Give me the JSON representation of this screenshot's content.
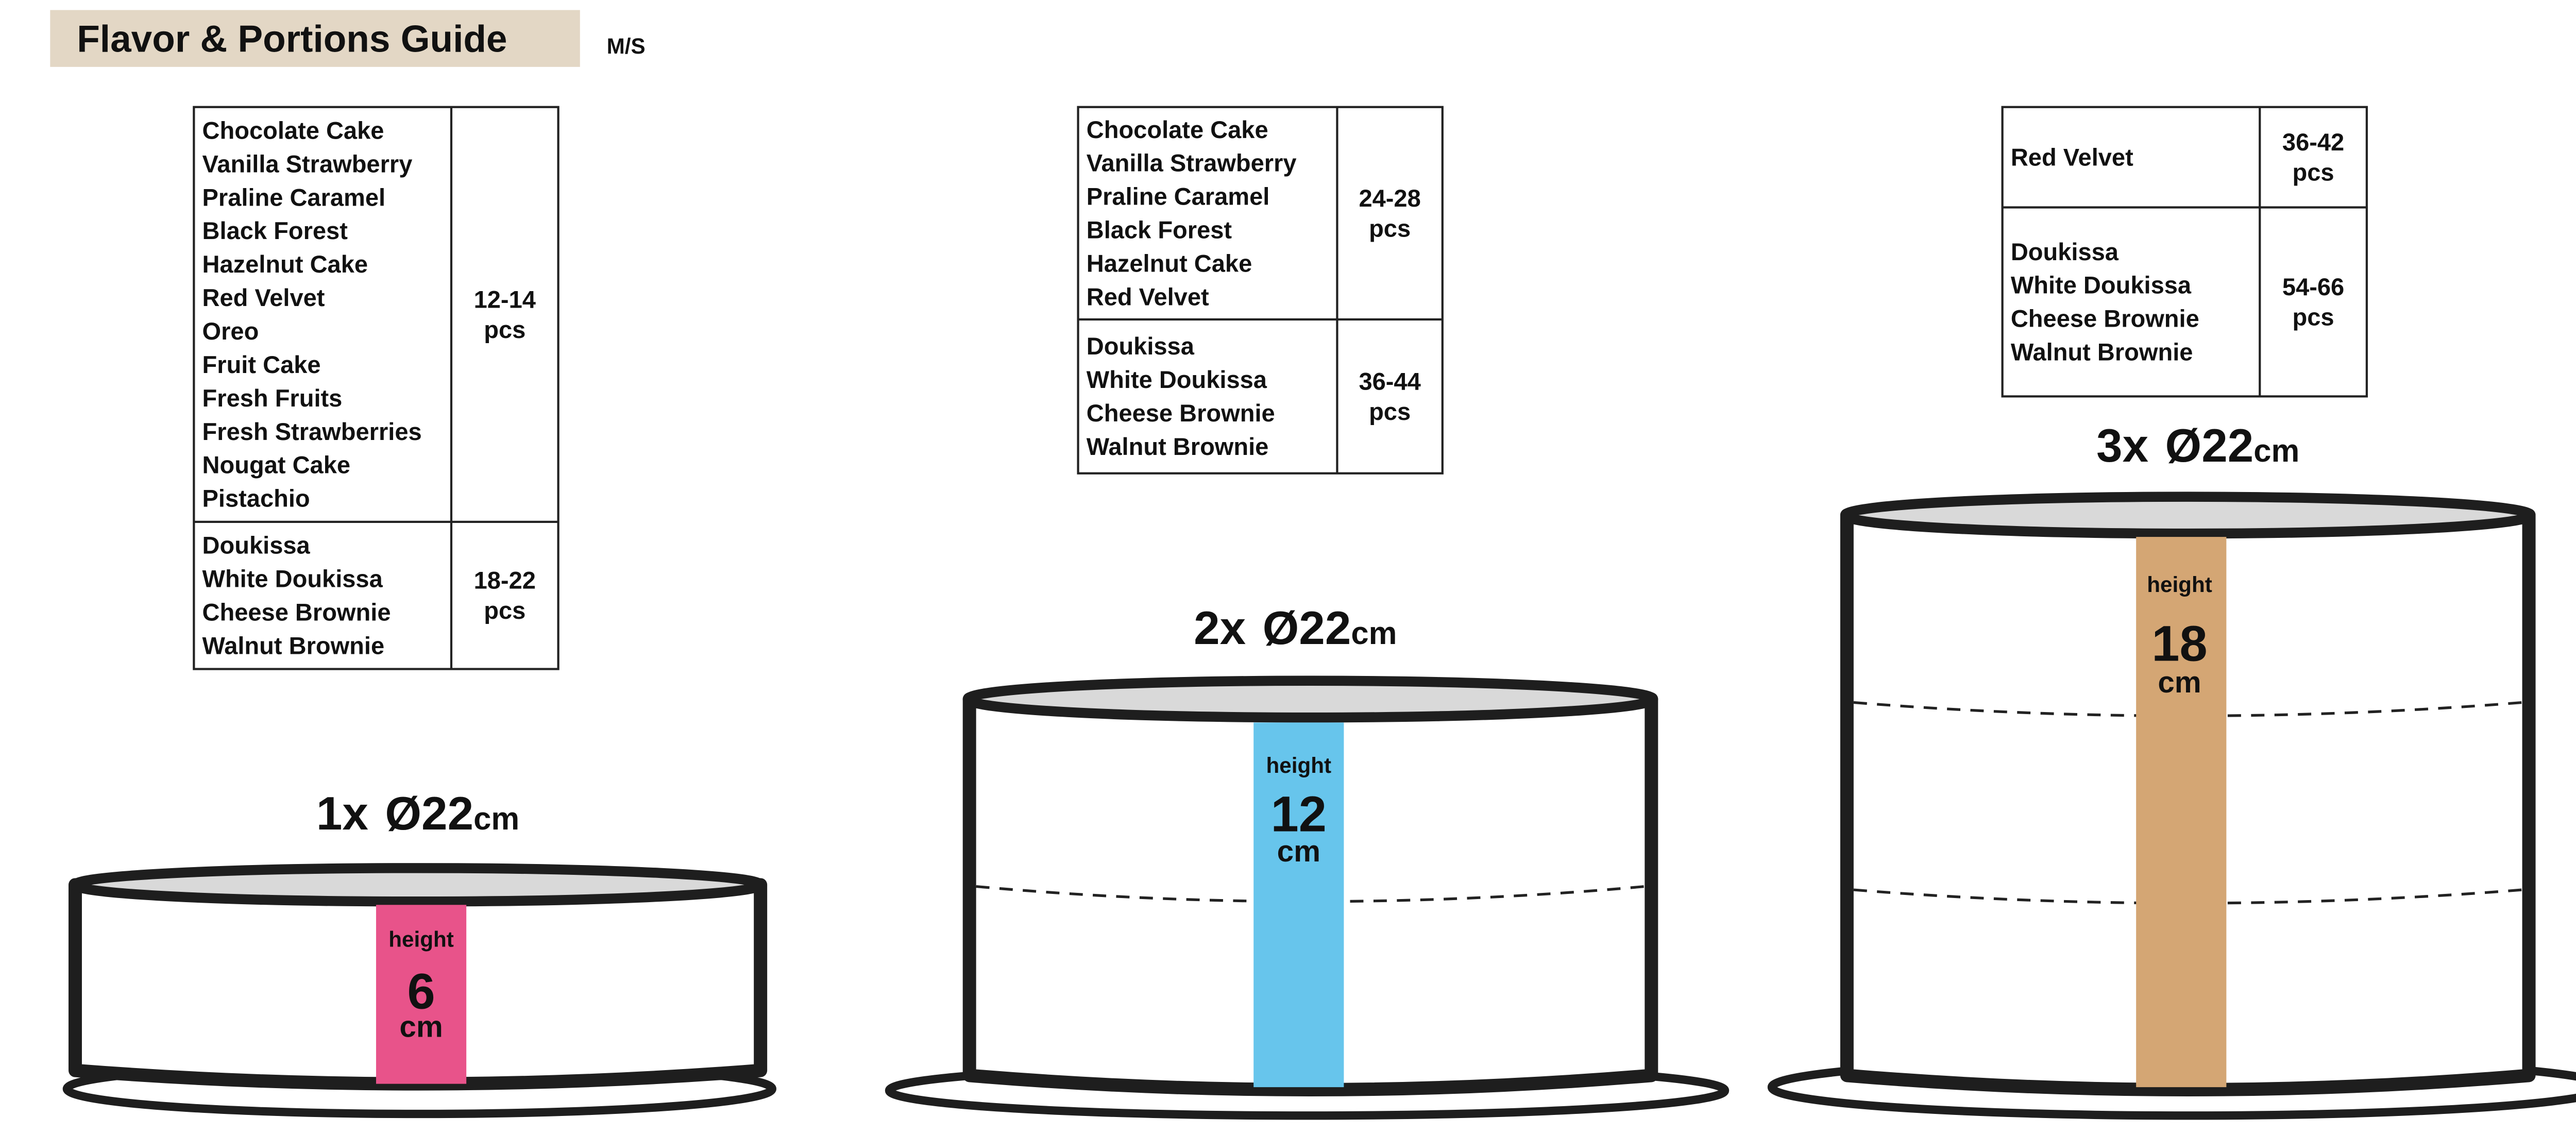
{
  "header": {
    "title": "Flavor & Portions Guide",
    "subtitle": "M/S",
    "title_bg": "#e3d7c5"
  },
  "tables": [
    {
      "rows": [
        {
          "flavors": [
            "Chocolate Cake",
            "Vanilla Strawberry",
            "Praline Caramel",
            "Black Forest",
            "Hazelnut Cake",
            "Red Velvet",
            "Oreo",
            "Fruit Cake",
            "Fresh Fruits",
            "Fresh Strawberries",
            "Nougat Cake",
            "Pistachio"
          ],
          "portions": [
            "12-14",
            "pcs"
          ]
        },
        {
          "flavors": [
            "Doukissa",
            "White Doukissa",
            "Cheese Brownie",
            "Walnut Brownie"
          ],
          "portions": [
            "18-22",
            "pcs"
          ]
        }
      ]
    },
    {
      "rows": [
        {
          "flavors": [
            "Chocolate Cake",
            "Vanilla Strawberry",
            "Praline Caramel",
            "Black Forest",
            "Hazelnut Cake",
            "Red Velvet"
          ],
          "portions": [
            "24-28",
            "pcs"
          ]
        },
        {
          "flavors": [
            "Doukissa",
            "White Doukissa",
            "Cheese Brownie",
            "Walnut Brownie"
          ],
          "portions": [
            "36-44",
            "pcs"
          ]
        }
      ]
    },
    {
      "rows": [
        {
          "flavors": [
            "Red Velvet"
          ],
          "portions": [
            "36-42",
            "pcs"
          ]
        },
        {
          "flavors": [
            "Doukissa",
            "White Doukissa",
            "Cheese Brownie",
            "Walnut Brownie"
          ],
          "portions": [
            "54-66",
            "pcs"
          ]
        }
      ]
    }
  ],
  "cakes": [
    {
      "count": "1x",
      "diameter": "Ø22",
      "unit": "cm",
      "height_label": "height",
      "height_value": "6",
      "height_unit": "cm",
      "color": "#e8538a",
      "layers": 1
    },
    {
      "count": "2x",
      "diameter": "Ø22",
      "unit": "cm",
      "height_label": "height",
      "height_value": "12",
      "height_unit": "cm",
      "color": "#67c5ec",
      "layers": 2
    },
    {
      "count": "3x",
      "diameter": "Ø22",
      "unit": "cm",
      "height_label": "height",
      "height_value": "18",
      "height_unit": "cm",
      "color": "#d4a674",
      "layers": 3
    }
  ]
}
